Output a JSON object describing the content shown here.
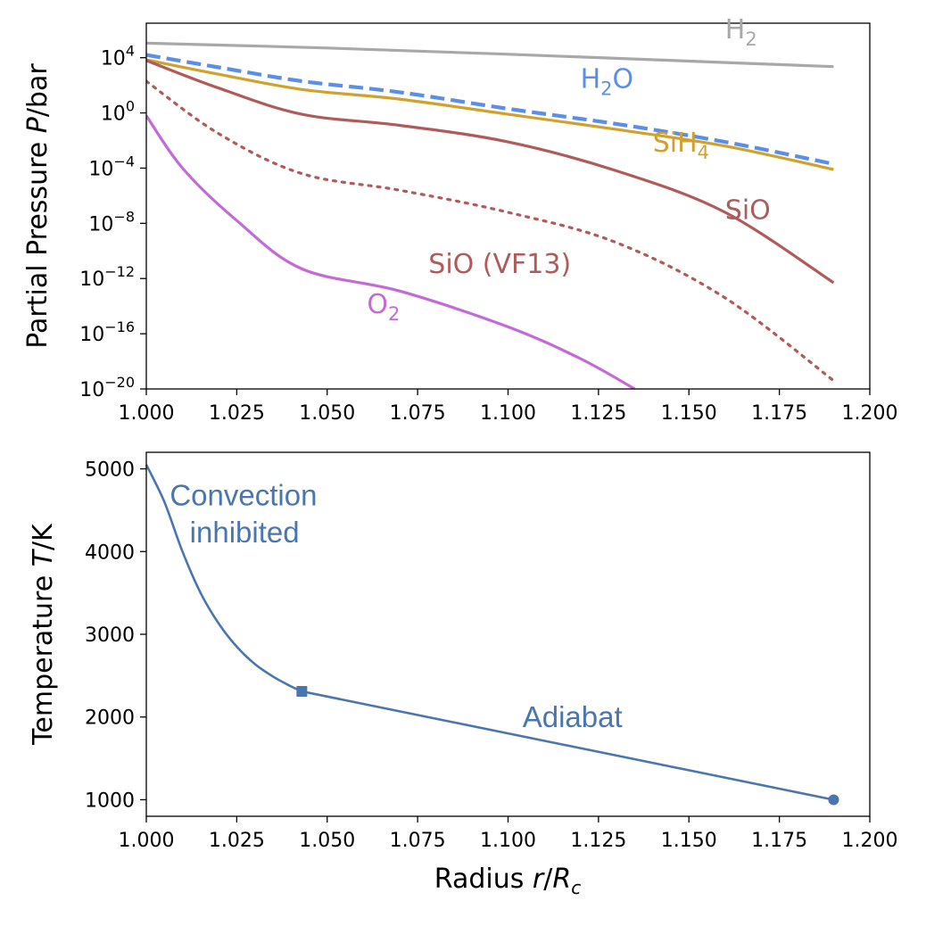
{
  "chart_data": [
    {
      "type": "line",
      "yscale": "log",
      "ylabel_parts": [
        "Partial Pressure ",
        "P",
        "/bar"
      ],
      "xlim": [
        1.0,
        1.2
      ],
      "ylim_exp": [
        -20,
        6.5
      ],
      "x_ticks": [
        "1.000",
        "1.025",
        "1.050",
        "1.075",
        "1.100",
        "1.125",
        "1.150",
        "1.175",
        "1.200"
      ],
      "y_ticks": [
        {
          "base": "10",
          "exp": "4"
        },
        {
          "base": "10",
          "exp": "0"
        },
        {
          "base": "10",
          "exp": "−4"
        },
        {
          "base": "10",
          "exp": "−8"
        },
        {
          "base": "10",
          "exp": "−12"
        },
        {
          "base": "10",
          "exp": "−16"
        },
        {
          "base": "10",
          "exp": "−20"
        }
      ],
      "series": [
        {
          "name": "H2",
          "label_main": "H",
          "label_sub": "2",
          "label_tail": "",
          "color": "#a8a8a8",
          "style": "solid",
          "label_at": [
            1.16,
            5.4
          ],
          "x": [
            1.0,
            1.05,
            1.1,
            1.15,
            1.19
          ],
          "log10_p": [
            5.05,
            4.7,
            4.25,
            3.75,
            3.35
          ]
        },
        {
          "name": "H2O",
          "label_main": "H",
          "label_sub": "2",
          "label_tail": "O",
          "color": "#5b8fe6",
          "style": "dashed",
          "label_at": [
            1.12,
            1.8
          ],
          "x": [
            1.0,
            1.02,
            1.043,
            1.07,
            1.1,
            1.13,
            1.16,
            1.19
          ],
          "log10_p": [
            4.2,
            3.3,
            2.3,
            1.5,
            0.3,
            -0.8,
            -2.1,
            -3.7
          ]
        },
        {
          "name": "SiH4",
          "label_main": "SiH",
          "label_sub": "4",
          "label_tail": "",
          "color": "#d1a12f",
          "style": "solid",
          "label_at": [
            1.14,
            -2.8
          ],
          "x": [
            1.0,
            1.02,
            1.043,
            1.07,
            1.1,
            1.13,
            1.16,
            1.19
          ],
          "log10_p": [
            3.85,
            2.8,
            1.7,
            1.0,
            -0.1,
            -1.2,
            -2.4,
            -4.1
          ]
        },
        {
          "name": "SiO",
          "label_main": "SiO",
          "label_sub": "",
          "label_tail": "",
          "color": "#b05a5a",
          "style": "solid",
          "label_at": [
            1.16,
            -7.7
          ],
          "x": [
            1.0,
            1.02,
            1.043,
            1.07,
            1.1,
            1.13,
            1.16,
            1.19
          ],
          "log10_p": [
            3.8,
            1.8,
            -0.1,
            -0.9,
            -2.1,
            -4.2,
            -7.2,
            -12.3
          ]
        },
        {
          "name": "SiO (VF13)",
          "label_main": "SiO (VF13)",
          "label_sub": "",
          "label_tail": "",
          "color": "#b05a5a",
          "style": "dotted",
          "label_at": [
            1.078,
            -11.6
          ],
          "x": [
            1.0,
            1.02,
            1.043,
            1.07,
            1.1,
            1.13,
            1.16,
            1.19
          ],
          "log10_p": [
            2.3,
            -1.5,
            -4.4,
            -5.6,
            -7.2,
            -9.4,
            -13.4,
            -19.4
          ]
        },
        {
          "name": "O2",
          "label_main": "O",
          "label_sub": "2",
          "label_tail": "",
          "color": "#c46ad6",
          "style": "solid",
          "label_at": [
            1.061,
            -14.5
          ],
          "x": [
            1.0,
            1.01,
            1.025,
            1.043,
            1.07,
            1.1,
            1.12,
            1.135
          ],
          "log10_p": [
            -0.2,
            -4.0,
            -7.8,
            -11.3,
            -12.9,
            -15.5,
            -17.8,
            -20.0
          ]
        }
      ]
    },
    {
      "type": "line",
      "ylabel_parts": [
        "Temperature ",
        "T",
        "/K"
      ],
      "xlabel_parts": [
        "Radius ",
        "r",
        "/",
        "R",
        "c"
      ],
      "xlim": [
        1.0,
        1.2
      ],
      "ylim": [
        800,
        5200
      ],
      "x_ticks": [
        "1.000",
        "1.025",
        "1.050",
        "1.075",
        "1.100",
        "1.125",
        "1.150",
        "1.175",
        "1.200"
      ],
      "y_ticks": [
        "1000",
        "2000",
        "3000",
        "4000",
        "5000"
      ],
      "color": "#4a76b0",
      "x": [
        1.0,
        1.005,
        1.01,
        1.015,
        1.02,
        1.025,
        1.03,
        1.035,
        1.04,
        1.043,
        1.19
      ],
      "y": [
        5050,
        4600,
        4000,
        3500,
        3130,
        2850,
        2640,
        2490,
        2370,
        2310,
        1000
      ],
      "markers": [
        {
          "shape": "square",
          "x": 1.043,
          "y": 2310
        },
        {
          "shape": "circle",
          "x": 1.19,
          "y": 1000
        }
      ],
      "annotations": [
        {
          "text": "Convection",
          "x": 1.0065,
          "y": 4560
        },
        {
          "text": "inhibited",
          "x": 1.012,
          "y": 4110
        },
        {
          "text": "Adiabat",
          "x": 1.104,
          "y": 1880
        }
      ]
    }
  ]
}
